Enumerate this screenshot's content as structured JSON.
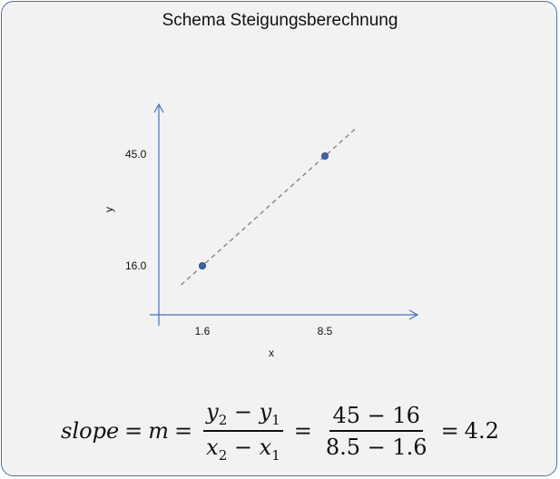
{
  "title": "Schema Steigungsberechnung",
  "chart_data": {
    "type": "scatter",
    "points": [
      {
        "x": 1.6,
        "y": 16.0
      },
      {
        "x": 8.5,
        "y": 45.0
      }
    ],
    "x_tick_labels": [
      "1.6",
      "8.5"
    ],
    "y_tick_labels": [
      "16.0",
      "45.0"
    ],
    "xlabel": "x",
    "ylabel": "y",
    "trend_line": "dashed",
    "colors": {
      "axis": "#4472c4",
      "point": "#3b64b0",
      "trend": "#8c8c8c"
    }
  },
  "formula": {
    "lhs": "slope",
    "m": "m",
    "y2": "y",
    "y2_sub": "2",
    "y1": "y",
    "y1_sub": "1",
    "x2": "x",
    "x2_sub": "2",
    "x1": "x",
    "x1_sub": "1",
    "num": "45 − 16",
    "den": "8.5 − 1.6",
    "result": "4.2"
  }
}
